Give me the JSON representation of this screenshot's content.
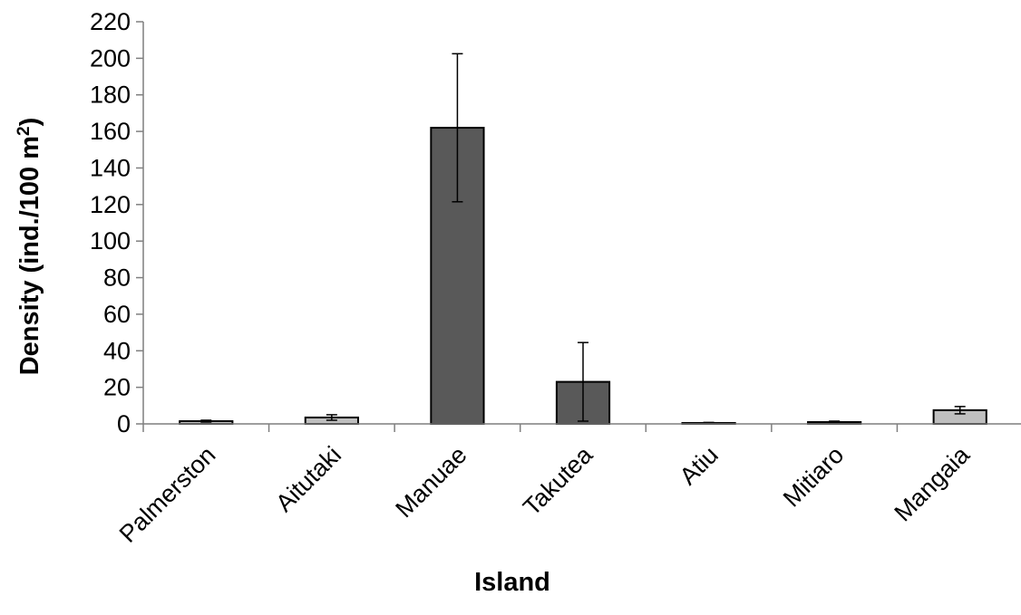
{
  "chart_data": {
    "type": "bar",
    "title": "",
    "xlabel": "Island",
    "ylabel_prefix": "Density (ind./100 m",
    "ylabel_sup": "2",
    "ylabel_suffix": ")",
    "ylim": [
      0,
      220
    ],
    "ytick_step": 20,
    "yticks": [
      "0",
      "20",
      "40",
      "60",
      "80",
      "100",
      "120",
      "140",
      "160",
      "180",
      "200",
      "220"
    ],
    "grid": false,
    "categories": [
      "Palmerston",
      "Aitutaki",
      "Manuae",
      "Takutea",
      "Atiu",
      "Mitiaro",
      "Mangaia"
    ],
    "values": [
      1.5,
      3.5,
      162,
      23,
      0.5,
      1.0,
      7.5
    ],
    "error": [
      0.5,
      1.5,
      40.5,
      21.5,
      0.3,
      0.5,
      2.0
    ],
    "bar_colors": [
      "#bfbfbf",
      "#bfbfbf",
      "#595959",
      "#595959",
      "#bfbfbf",
      "#bfbfbf",
      "#bfbfbf"
    ]
  }
}
